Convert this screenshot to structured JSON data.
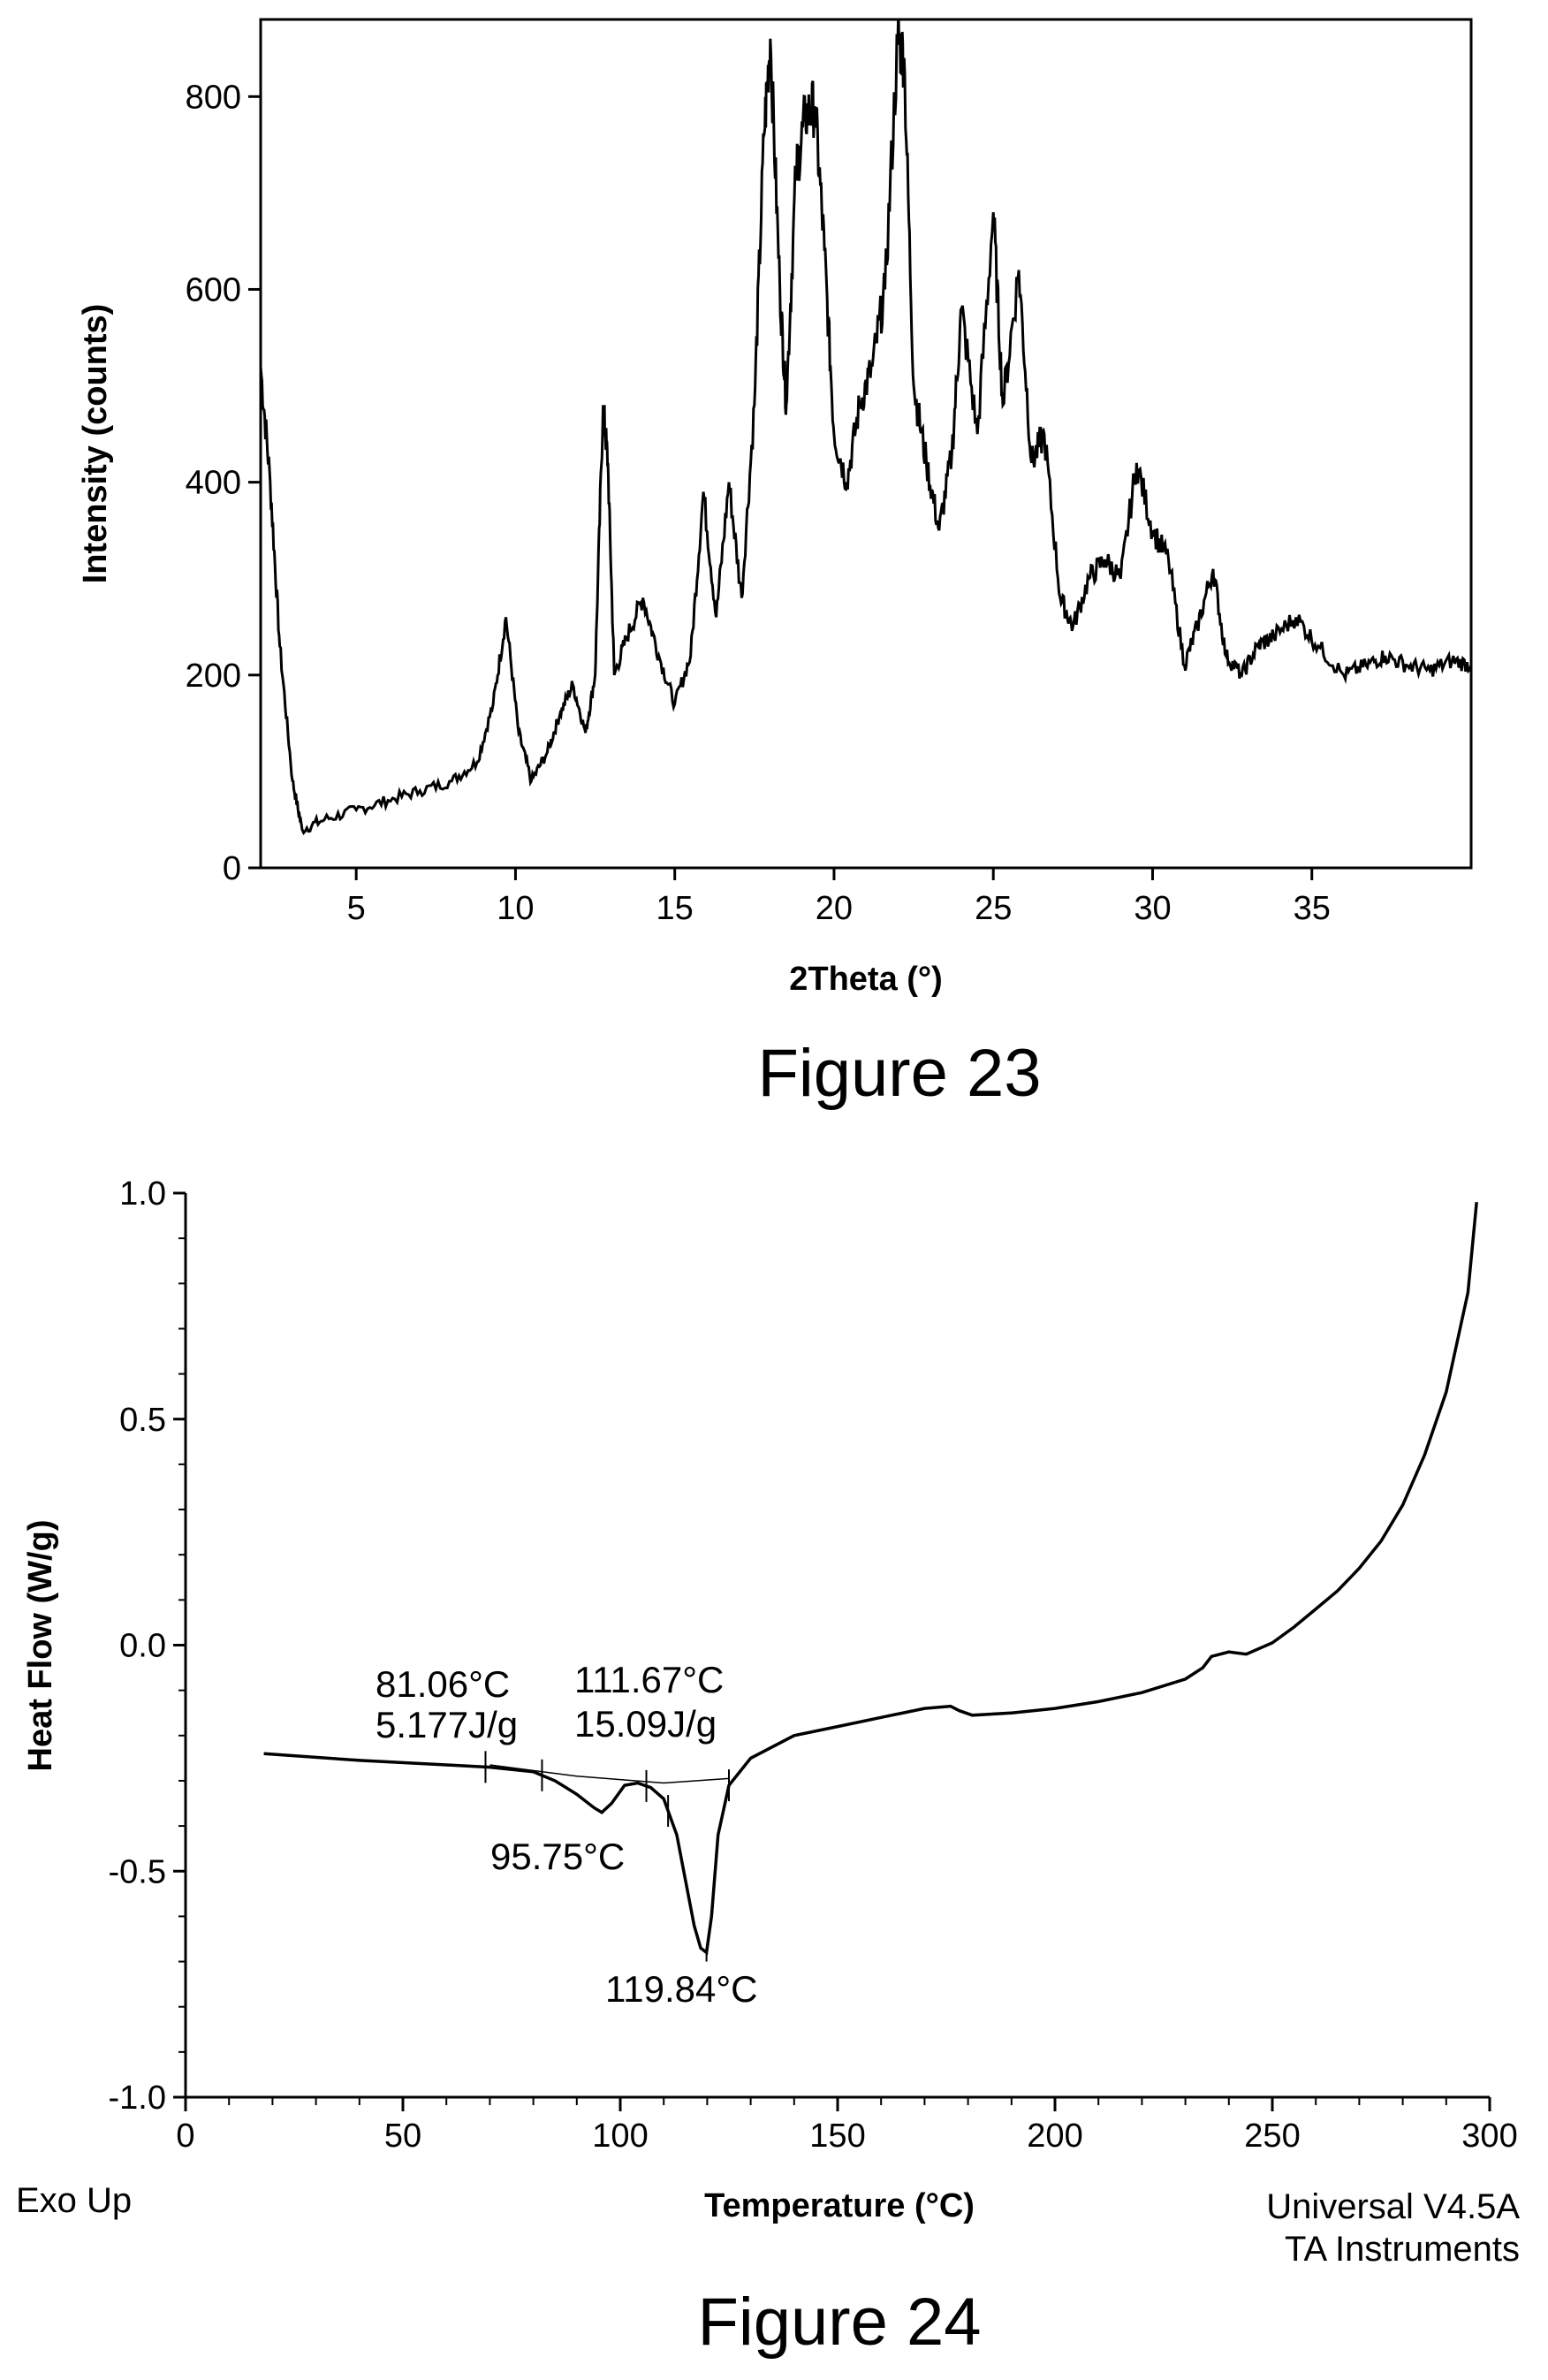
{
  "figures": [
    {
      "caption": "Figure 23",
      "chart_data": {
        "type": "line",
        "xlabel": "2Theta (°)",
        "ylabel": "Intensity (counts)",
        "xlim": [
          2,
          40
        ],
        "ylim": [
          0,
          880
        ],
        "xticks": [
          5,
          10,
          15,
          20,
          25,
          30,
          35
        ],
        "yticks": [
          0,
          200,
          400,
          600,
          800
        ],
        "grid": false,
        "series": [
          {
            "x": [
              2.0,
              2.3,
              2.6,
              3.0,
              3.3,
              4.0,
              5.0,
              6.0,
              7.0,
              8.0,
              8.8,
              9.3,
              9.7,
              10.1,
              10.5,
              11.0,
              11.4,
              11.8,
              12.2,
              12.5,
              12.75,
              12.9,
              13.1,
              13.5,
              14.0,
              14.5,
              15.0,
              15.5,
              15.9,
              16.3,
              16.7,
              17.1,
              17.5,
              17.8,
              18.0,
              18.3,
              18.5,
              18.8,
              19.1,
              19.4,
              19.7,
              20.0,
              20.4,
              20.8,
              21.2,
              21.6,
              22.0,
              22.2,
              22.5,
              22.9,
              23.3,
              23.7,
              24.0,
              24.5,
              25.0,
              25.3,
              25.8,
              26.2,
              26.6,
              27.1,
              27.5,
              28.0,
              28.5,
              29.0,
              29.5,
              30.0,
              30.5,
              31.0,
              31.4,
              31.9,
              32.3,
              32.8,
              33.3,
              33.8,
              34.5,
              35.2,
              36.0,
              36.7,
              37.3,
              38.0,
              38.7,
              39.4,
              40.0
            ],
            "y": [
              520,
              400,
              230,
              90,
              40,
              50,
              60,
              70,
              80,
              90,
              110,
              170,
              260,
              140,
              90,
              120,
              160,
              190,
              140,
              200,
              480,
              420,
              200,
              240,
              280,
              220,
              170,
              220,
              390,
              260,
              400,
              280,
              480,
              760,
              860,
              600,
              480,
              720,
              780,
              790,
              640,
              450,
              400,
              480,
              520,
              600,
              860,
              840,
              500,
              420,
              350,
              430,
              580,
              450,
              680,
              480,
              620,
              420,
              450,
              280,
              250,
              300,
              320,
              300,
              420,
              350,
              320,
              210,
              250,
              310,
              220,
              200,
              230,
              240,
              260,
              230,
              200,
              210,
              220,
              210,
              205,
              215,
              210
            ]
          }
        ]
      }
    },
    {
      "caption": "Figure 24",
      "chart_data": {
        "type": "line",
        "xlabel": "Temperature (°C)",
        "ylabel": "Heat Flow (W/g)",
        "xlim": [
          0,
          300
        ],
        "ylim": [
          -1.0,
          1.0
        ],
        "xticks": [
          0,
          50,
          100,
          150,
          200,
          250,
          300
        ],
        "ytick_labels": [
          "1.0",
          "0.5",
          "0.0",
          "-0.5",
          "-1.0"
        ],
        "yticks": [
          1.0,
          0.5,
          0.0,
          -0.5,
          -1.0
        ],
        "grid": false,
        "series": [
          {
            "x": [
              18,
              40,
              60,
              70,
              80,
              85,
              90,
              94,
              95.75,
              98,
              101,
              104,
              107,
              110,
              113,
              115,
              117,
              118.5,
              119.84,
              121,
              122.5,
              125,
              130,
              140,
              150,
              160,
              170,
              176,
              178,
              181,
              190,
              200,
              210,
              220,
              230,
              234,
              236,
              240,
              244,
              250,
              255,
              260,
              265,
              270,
              275,
              280,
              285,
              290,
              295,
              297
            ],
            "y": [
              -0.24,
              -0.255,
              -0.265,
              -0.27,
              -0.28,
              -0.3,
              -0.33,
              -0.36,
              -0.37,
              -0.35,
              -0.31,
              -0.305,
              -0.315,
              -0.34,
              -0.42,
              -0.52,
              -0.62,
              -0.67,
              -0.68,
              -0.6,
              -0.42,
              -0.31,
              -0.25,
              -0.2,
              -0.18,
              -0.16,
              -0.14,
              -0.135,
              -0.145,
              -0.155,
              -0.15,
              -0.14,
              -0.125,
              -0.105,
              -0.075,
              -0.05,
              -0.025,
              -0.015,
              -0.02,
              0.005,
              0.04,
              0.08,
              0.12,
              0.17,
              0.23,
              0.31,
              0.42,
              0.56,
              0.78,
              0.98
            ]
          },
          {
            "x": [
              70,
              90,
              110,
              125
            ],
            "y": [
              -0.265,
              -0.29,
              -0.305,
              -0.295
            ]
          }
        ],
        "annotations": [
          {
            "text": "81.06°C",
            "x": 81.06
          },
          {
            "text": "5.177J/g",
            "x": 81.06
          },
          {
            "text": "111.67°C",
            "x": 111.67
          },
          {
            "text": "15.09J/g",
            "x": 111.67
          },
          {
            "text": "95.75°C",
            "x": 95.75
          },
          {
            "text": "119.84°C",
            "x": 119.84
          }
        ],
        "marker_ticks_x": [
          69,
          82,
          106,
          111,
          125
        ],
        "corner_left": "Exo Up",
        "corner_right_line1": "Universal V4.5A",
        "corner_right_line2": "TA Instruments"
      }
    }
  ]
}
